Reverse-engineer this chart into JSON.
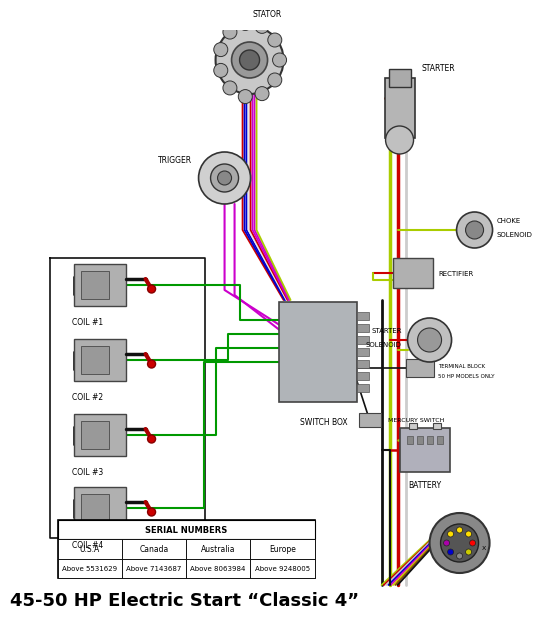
{
  "title": "45-50 HP Electric Start “Classic 4”",
  "background_color": "#ffffff",
  "serial_table": {
    "header": "SERIAL NUMBERS",
    "columns": [
      "U.S.A",
      "Canada",
      "Australia",
      "Europe"
    ],
    "values": [
      "Above 5531629",
      "Above 7143687",
      "Above 8063984",
      "Above 9248005"
    ]
  },
  "colors": {
    "red": "#cc0000",
    "green": "#009900",
    "blue": "#0000cc",
    "yellow": "#cccc00",
    "purple": "#cc00cc",
    "black": "#111111",
    "white": "#e8e8e8",
    "gray": "#888888",
    "yg": "#aacc00",
    "brown": "#885500"
  }
}
